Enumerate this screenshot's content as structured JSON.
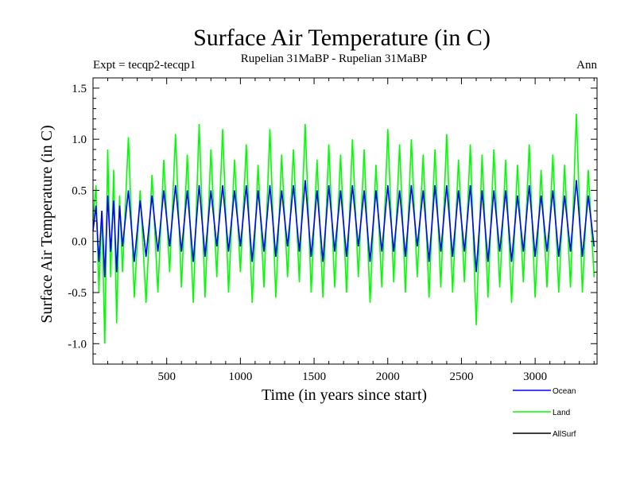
{
  "chart_data": {
    "type": "line",
    "title": "Surface Air Temperature (in C)",
    "subtitle_left": "Expt = tecqp2-tecqp1",
    "subtitle_center": "Rupelian  31MaBP - Rupelian  31MaBP",
    "subtitle_right": "Ann",
    "xlabel": "Time (in years since start)",
    "ylabel": "Surface Air Temperature (in C)",
    "xlim": [
      0,
      3420
    ],
    "ylim": [
      -1.2,
      1.6
    ],
    "xticks": [
      500,
      1000,
      1500,
      2000,
      2500,
      3000
    ],
    "xtick_labels": [
      "500",
      "1000",
      "1500",
      "2000",
      "2500",
      "3000"
    ],
    "yticks": [
      -1.0,
      -0.5,
      0.0,
      0.5,
      1.0,
      1.5
    ],
    "ytick_labels": [
      "-1.0",
      "-0.5",
      "0.0",
      "0.5",
      "1.0",
      "1.5"
    ],
    "grid": false,
    "legend_position": "bottom-right",
    "series": [
      {
        "name": "Land",
        "color": "#00ff00",
        "x": [
          0,
          20,
          40,
          60,
          80,
          100,
          120,
          140,
          160,
          180,
          200,
          240,
          280,
          320,
          360,
          400,
          440,
          480,
          520,
          560,
          600,
          640,
          680,
          720,
          760,
          800,
          840,
          880,
          920,
          960,
          1000,
          1040,
          1080,
          1120,
          1160,
          1200,
          1240,
          1280,
          1320,
          1360,
          1400,
          1440,
          1480,
          1520,
          1560,
          1600,
          1640,
          1680,
          1720,
          1760,
          1800,
          1840,
          1880,
          1920,
          1960,
          2000,
          2040,
          2080,
          2120,
          2160,
          2200,
          2240,
          2280,
          2320,
          2360,
          2400,
          2440,
          2480,
          2520,
          2560,
          2600,
          2640,
          2680,
          2720,
          2760,
          2800,
          2840,
          2880,
          2920,
          2960,
          3000,
          3040,
          3080,
          3120,
          3160,
          3200,
          3240,
          3280,
          3320,
          3360,
          3400
        ],
        "values": [
          0.2,
          0.55,
          -0.5,
          0.3,
          -1.0,
          0.9,
          -0.35,
          0.7,
          -0.8,
          0.45,
          -0.3,
          1.02,
          -0.55,
          0.5,
          -0.6,
          0.65,
          -0.5,
          0.8,
          -0.3,
          1.05,
          -0.45,
          0.85,
          -0.6,
          1.15,
          -0.55,
          0.9,
          -0.35,
          1.1,
          -0.5,
          0.8,
          -0.3,
          0.95,
          -0.6,
          0.75,
          -0.45,
          1.1,
          -0.55,
          0.85,
          -0.35,
          0.9,
          -0.4,
          1.15,
          -0.5,
          0.8,
          -0.55,
          0.95,
          -0.45,
          0.85,
          -0.5,
          1.0,
          -0.35,
          0.9,
          -0.6,
          0.75,
          -0.45,
          1.1,
          -0.4,
          0.95,
          -0.5,
          1.0,
          -0.35,
          0.85,
          -0.55,
          0.9,
          -0.45,
          1.05,
          -0.5,
          0.8,
          -0.4,
          0.95,
          -0.82,
          0.85,
          -0.55,
          0.9,
          -0.45,
          0.8,
          -0.6,
          0.75,
          -0.4,
          0.95,
          -0.55,
          0.7,
          -0.45,
          0.85,
          -0.5,
          0.75,
          -0.45,
          1.25,
          -0.5,
          0.7,
          -0.35
        ]
      },
      {
        "name": "Ocean",
        "color": "#0000ff",
        "x": [
          0,
          20,
          40,
          60,
          80,
          100,
          120,
          140,
          160,
          180,
          200,
          240,
          280,
          320,
          360,
          400,
          440,
          480,
          520,
          560,
          600,
          640,
          680,
          720,
          760,
          800,
          840,
          880,
          920,
          960,
          1000,
          1040,
          1080,
          1120,
          1160,
          1200,
          1240,
          1280,
          1320,
          1360,
          1400,
          1440,
          1480,
          1520,
          1560,
          1600,
          1640,
          1680,
          1720,
          1760,
          1800,
          1840,
          1880,
          1920,
          1960,
          2000,
          2040,
          2080,
          2120,
          2160,
          2200,
          2240,
          2280,
          2320,
          2360,
          2400,
          2440,
          2480,
          2520,
          2560,
          2600,
          2640,
          2680,
          2720,
          2760,
          2800,
          2840,
          2880,
          2920,
          2960,
          3000,
          3040,
          3080,
          3120,
          3160,
          3200,
          3240,
          3280,
          3320,
          3360,
          3400
        ],
        "values": [
          0.1,
          0.35,
          -0.2,
          0.3,
          -0.35,
          0.45,
          -0.1,
          0.4,
          -0.3,
          0.35,
          -0.05,
          0.5,
          -0.2,
          0.4,
          -0.15,
          0.45,
          -0.1,
          0.5,
          -0.05,
          0.55,
          -0.1,
          0.5,
          -0.2,
          0.55,
          -0.15,
          0.5,
          -0.05,
          0.55,
          -0.1,
          0.5,
          -0.05,
          0.55,
          -0.2,
          0.5,
          -0.1,
          0.55,
          -0.15,
          0.5,
          -0.05,
          0.55,
          -0.1,
          0.6,
          -0.15,
          0.5,
          -0.2,
          0.55,
          -0.1,
          0.5,
          -0.15,
          0.55,
          -0.05,
          0.5,
          -0.2,
          0.5,
          -0.1,
          0.55,
          -0.1,
          0.5,
          -0.15,
          0.55,
          -0.05,
          0.5,
          -0.2,
          0.55,
          -0.1,
          0.55,
          -0.15,
          0.5,
          -0.1,
          0.55,
          -0.3,
          0.5,
          -0.2,
          0.5,
          -0.1,
          0.5,
          -0.2,
          0.45,
          -0.1,
          0.55,
          -0.15,
          0.45,
          -0.1,
          0.5,
          -0.15,
          0.45,
          -0.1,
          0.6,
          -0.15,
          0.45,
          -0.05
        ]
      }
    ],
    "legend": [
      {
        "name": "Ocean",
        "color": "#0000ff"
      },
      {
        "name": "Land",
        "color": "#00ff00"
      },
      {
        "name": "AllSurf",
        "color": "#000000"
      }
    ]
  }
}
